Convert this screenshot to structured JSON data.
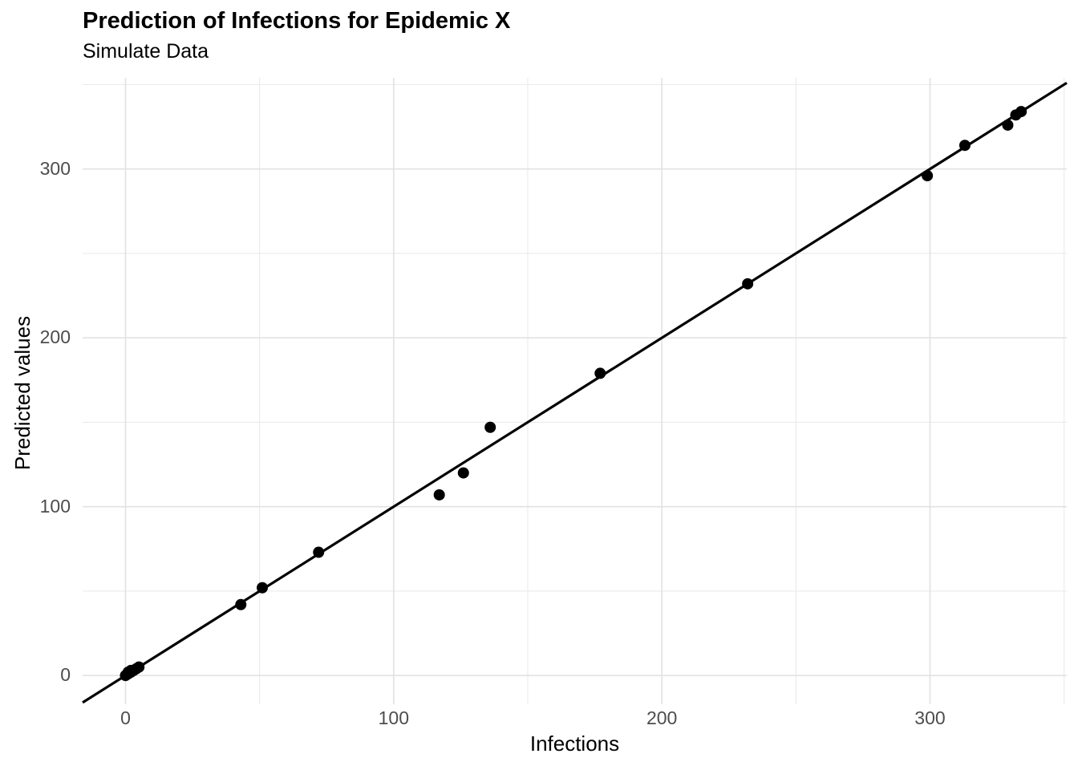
{
  "header": {
    "title": "Prediction of Infections for Epidemic X",
    "subtitle": "Simulate Data"
  },
  "chart_data": {
    "type": "scatter",
    "title": "Prediction of Infections for Epidemic X",
    "subtitle": "Simulate Data",
    "xlabel": "Infections",
    "ylabel": "Predicted values",
    "x_ticks": [
      0,
      100,
      200,
      300
    ],
    "y_ticks": [
      0,
      100,
      200,
      300
    ],
    "x_minor_ticks": [
      50,
      150,
      250,
      350
    ],
    "y_minor_ticks": [
      50,
      150,
      250,
      350
    ],
    "x_domain": [
      -16,
      351
    ],
    "y_domain": [
      -17,
      354
    ],
    "grid": true,
    "legend_position": "none",
    "background_color": "#ffffff",
    "grid_major_color": "#e2e2e2",
    "grid_minor_color": "#ebebeb",
    "axis_text_color": "#4d4d4d",
    "point_color": "#000000",
    "line_color": "#000000",
    "reference_line": {
      "slope": 1,
      "intercept": 0
    },
    "points": [
      {
        "x": 0,
        "y": 0
      },
      {
        "x": 1,
        "y": 1
      },
      {
        "x": 1,
        "y": 2
      },
      {
        "x": 2,
        "y": 2
      },
      {
        "x": 2,
        "y": 3
      },
      {
        "x": 3,
        "y": 3
      },
      {
        "x": 4,
        "y": 4
      },
      {
        "x": 5,
        "y": 5
      },
      {
        "x": 43,
        "y": 42
      },
      {
        "x": 51,
        "y": 52
      },
      {
        "x": 72,
        "y": 73
      },
      {
        "x": 117,
        "y": 107
      },
      {
        "x": 126,
        "y": 120
      },
      {
        "x": 136,
        "y": 147
      },
      {
        "x": 177,
        "y": 179
      },
      {
        "x": 232,
        "y": 232
      },
      {
        "x": 299,
        "y": 296
      },
      {
        "x": 313,
        "y": 314
      },
      {
        "x": 329,
        "y": 326
      },
      {
        "x": 332,
        "y": 332
      },
      {
        "x": 334,
        "y": 334
      }
    ]
  }
}
